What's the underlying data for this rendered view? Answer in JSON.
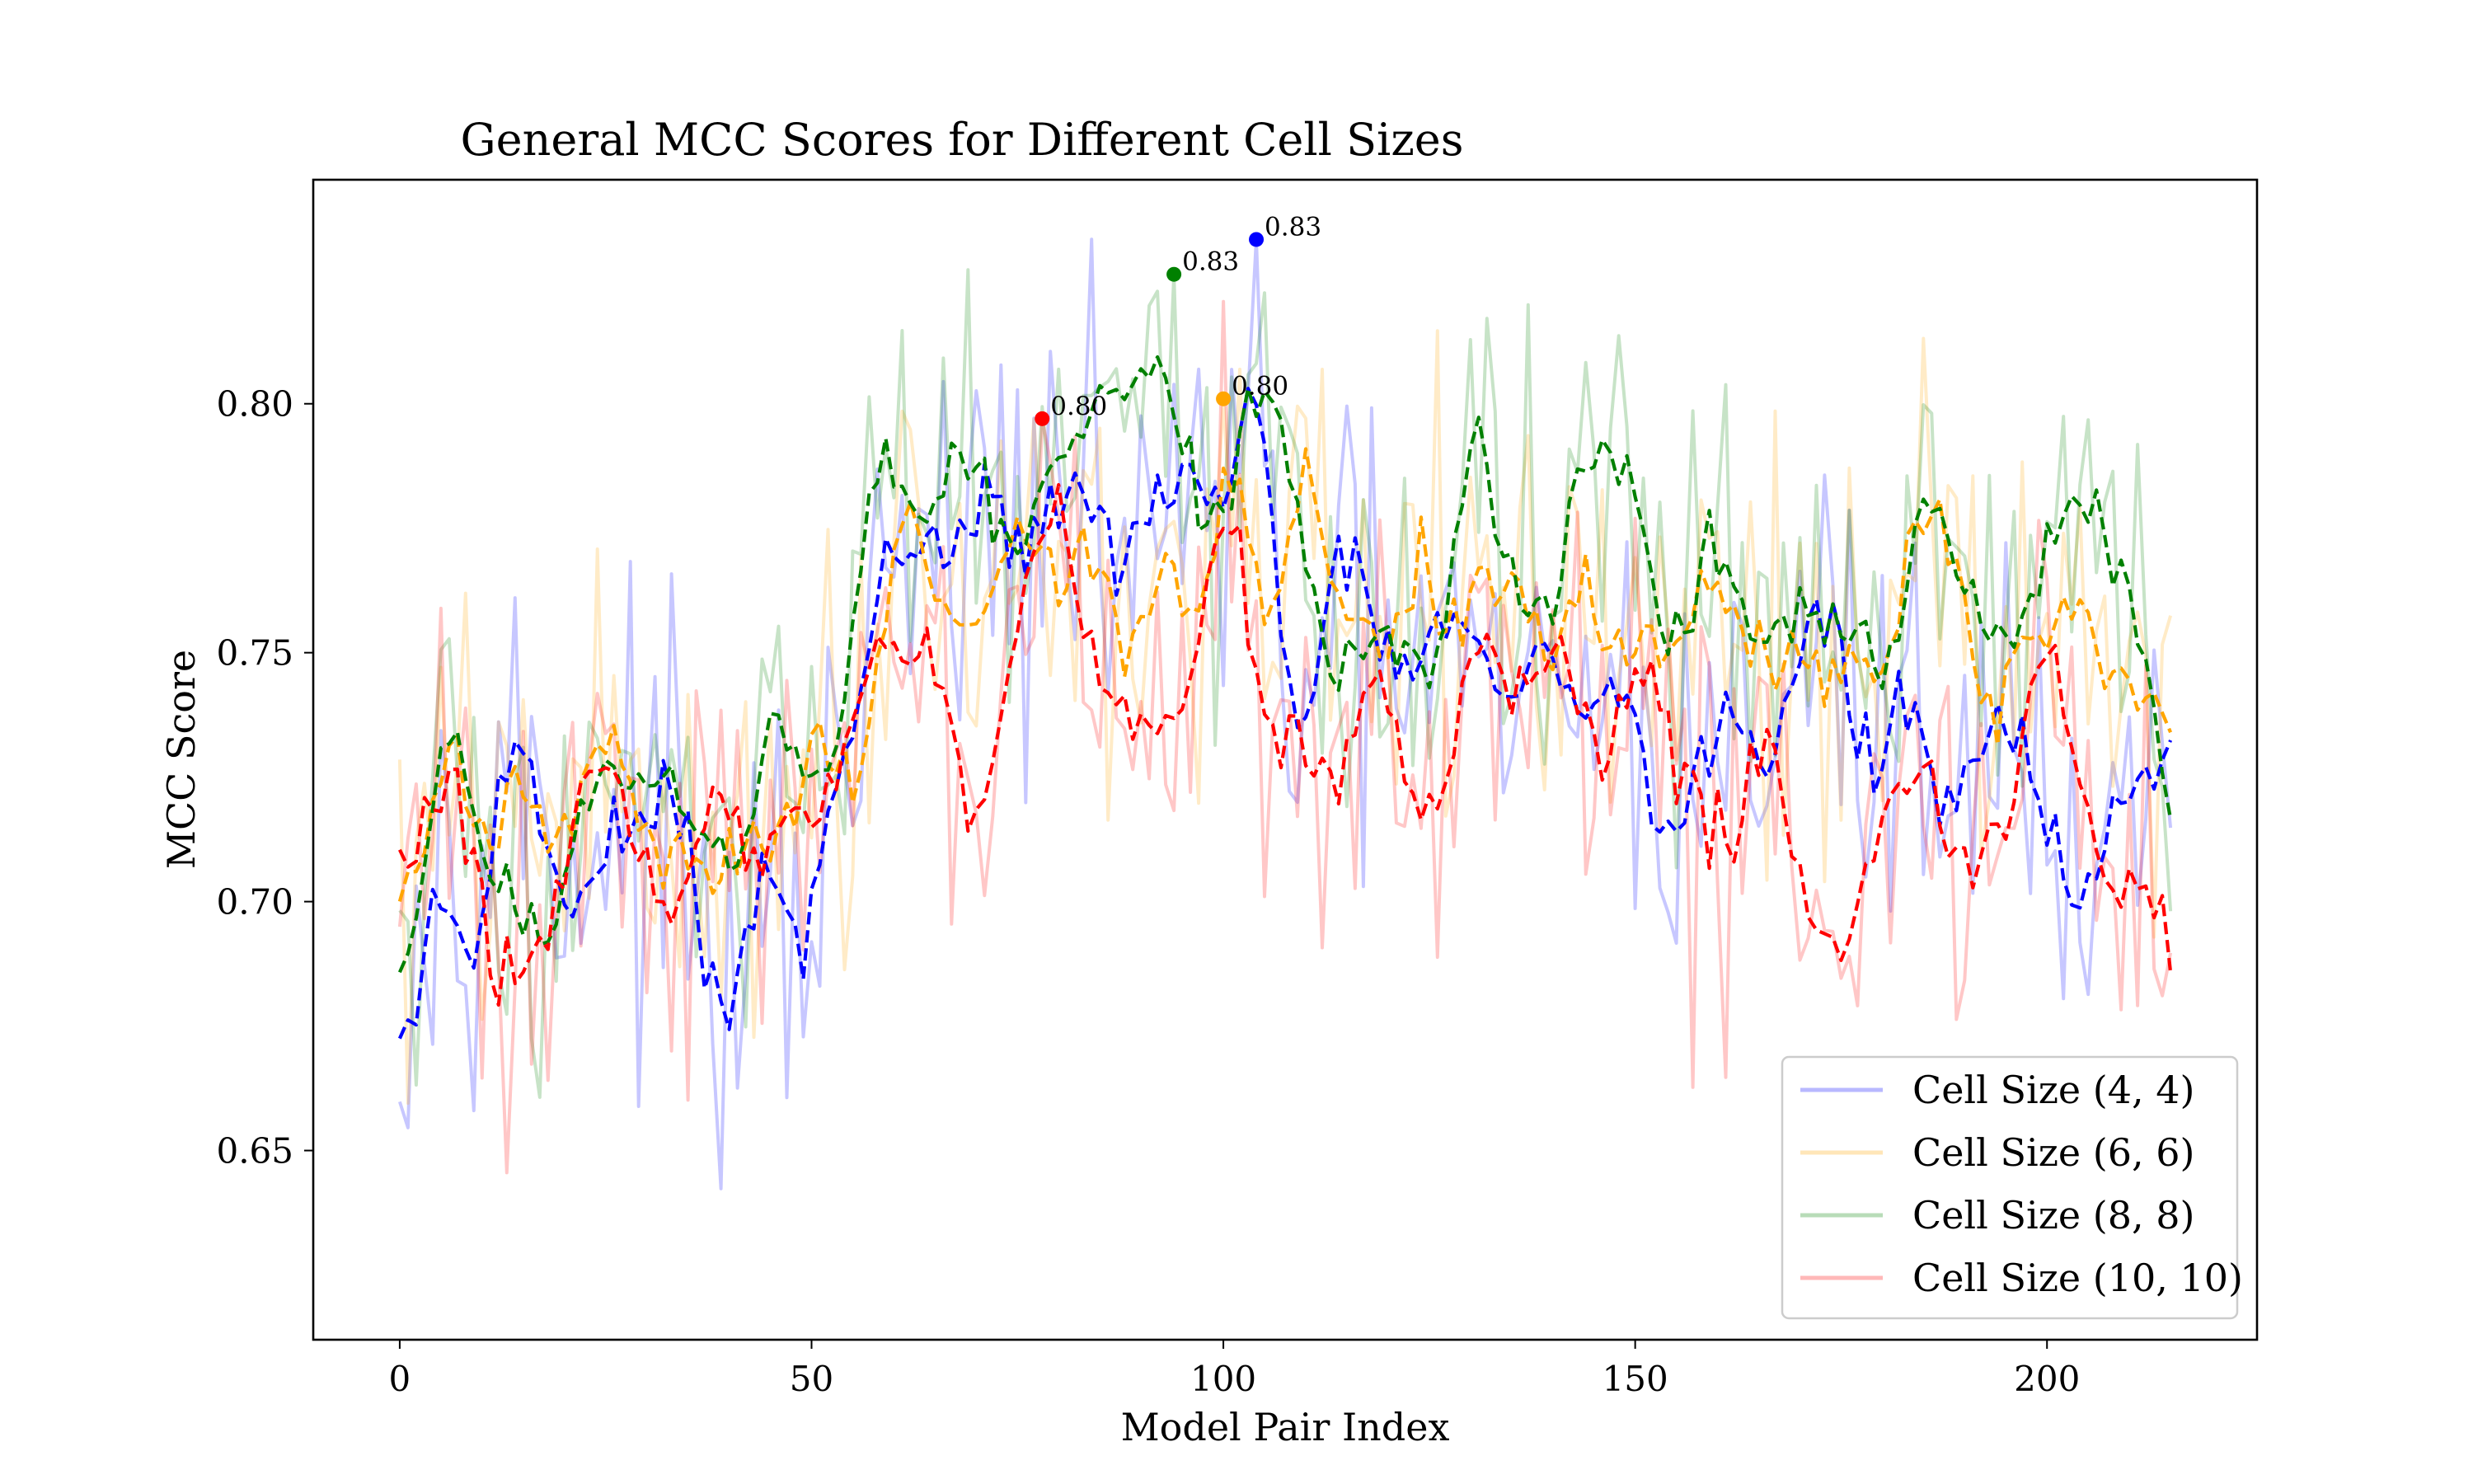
{
  "chart_data": {
    "type": "line",
    "title": "General MCC Scores for Different Cell Sizes",
    "xlabel": "Model Pair Index",
    "ylabel": "MCC Score",
    "xlim": [
      -10.5,
      225.5
    ],
    "ylim": [
      0.612,
      0.845
    ],
    "xticks": [
      0,
      50,
      100,
      150,
      200
    ],
    "yticks": [
      0.65,
      0.7,
      0.75,
      0.8
    ],
    "grid": false,
    "legend_position": "lower-right",
    "n_points": 216,
    "smoothing_window": 5,
    "series": [
      {
        "name": "Cell Size (4, 4)",
        "color": "#0000ff",
        "anchors": [
          [
            0,
            0.7
          ],
          [
            4,
            0.705
          ],
          [
            8,
            0.721
          ],
          [
            12,
            0.726
          ],
          [
            16,
            0.722
          ],
          [
            20,
            0.708
          ],
          [
            24,
            0.713
          ],
          [
            28,
            0.715
          ],
          [
            32,
            0.712
          ],
          [
            36,
            0.693
          ],
          [
            38,
            0.677
          ],
          [
            40,
            0.68
          ],
          [
            44,
            0.69
          ],
          [
            48,
            0.7
          ],
          [
            52,
            0.705
          ],
          [
            54,
            0.715
          ],
          [
            56,
            0.74
          ],
          [
            58,
            0.76
          ],
          [
            62,
            0.76
          ],
          [
            66,
            0.772
          ],
          [
            70,
            0.768
          ],
          [
            74,
            0.772
          ],
          [
            78,
            0.775
          ],
          [
            82,
            0.765
          ],
          [
            86,
            0.777
          ],
          [
            90,
            0.775
          ],
          [
            94,
            0.79
          ],
          [
            98,
            0.768
          ],
          [
            100,
            0.77
          ],
          [
            104,
            0.79
          ],
          [
            106,
            0.77
          ],
          [
            108,
            0.745
          ],
          [
            112,
            0.745
          ],
          [
            116,
            0.75
          ],
          [
            120,
            0.748
          ],
          [
            124,
            0.752
          ],
          [
            128,
            0.745
          ],
          [
            132,
            0.733
          ],
          [
            136,
            0.738
          ],
          [
            140,
            0.735
          ],
          [
            144,
            0.748
          ],
          [
            148,
            0.738
          ],
          [
            152,
            0.72
          ],
          [
            156,
            0.73
          ],
          [
            160,
            0.735
          ],
          [
            164,
            0.728
          ],
          [
            168,
            0.745
          ],
          [
            172,
            0.748
          ],
          [
            176,
            0.748
          ],
          [
            180,
            0.725
          ],
          [
            184,
            0.735
          ],
          [
            188,
            0.733
          ],
          [
            192,
            0.735
          ],
          [
            196,
            0.73
          ],
          [
            200,
            0.718
          ],
          [
            204,
            0.716
          ],
          [
            208,
            0.715
          ],
          [
            212,
            0.72
          ],
          [
            215,
            0.718
          ]
        ],
        "peak": {
          "x": 104,
          "y": 0.833,
          "label": "0.83"
        }
      },
      {
        "name": "Cell Size (6, 6)",
        "color": "#ffa500",
        "anchors": [
          [
            0,
            0.697
          ],
          [
            4,
            0.715
          ],
          [
            8,
            0.722
          ],
          [
            12,
            0.7
          ],
          [
            16,
            0.715
          ],
          [
            20,
            0.718
          ],
          [
            24,
            0.724
          ],
          [
            28,
            0.72
          ],
          [
            32,
            0.715
          ],
          [
            36,
            0.708
          ],
          [
            40,
            0.72
          ],
          [
            44,
            0.718
          ],
          [
            48,
            0.725
          ],
          [
            52,
            0.727
          ],
          [
            54,
            0.73
          ],
          [
            56,
            0.76
          ],
          [
            60,
            0.77
          ],
          [
            64,
            0.772
          ],
          [
            68,
            0.775
          ],
          [
            72,
            0.765
          ],
          [
            76,
            0.77
          ],
          [
            80,
            0.772
          ],
          [
            84,
            0.765
          ],
          [
            88,
            0.765
          ],
          [
            92,
            0.758
          ],
          [
            96,
            0.768
          ],
          [
            100,
            0.766
          ],
          [
            104,
            0.765
          ],
          [
            108,
            0.762
          ],
          [
            112,
            0.755
          ],
          [
            116,
            0.748
          ],
          [
            120,
            0.748
          ],
          [
            124,
            0.752
          ],
          [
            128,
            0.758
          ],
          [
            132,
            0.768
          ],
          [
            136,
            0.762
          ],
          [
            140,
            0.755
          ],
          [
            144,
            0.755
          ],
          [
            148,
            0.748
          ],
          [
            152,
            0.752
          ],
          [
            156,
            0.752
          ],
          [
            160,
            0.75
          ],
          [
            164,
            0.752
          ],
          [
            168,
            0.752
          ],
          [
            172,
            0.752
          ],
          [
            176,
            0.755
          ],
          [
            180,
            0.76
          ],
          [
            184,
            0.768
          ],
          [
            188,
            0.762
          ],
          [
            192,
            0.758
          ],
          [
            196,
            0.76
          ],
          [
            200,
            0.755
          ],
          [
            204,
            0.758
          ],
          [
            208,
            0.745
          ],
          [
            212,
            0.752
          ],
          [
            215,
            0.749
          ]
        ],
        "peak": {
          "x": 100,
          "y": 0.801,
          "label": "0.80"
        }
      },
      {
        "name": "Cell Size (8, 8)",
        "color": "#008000",
        "anchors": [
          [
            0,
            0.683
          ],
          [
            3,
            0.702
          ],
          [
            6,
            0.722
          ],
          [
            9,
            0.718
          ],
          [
            12,
            0.712
          ],
          [
            15,
            0.698
          ],
          [
            17,
            0.687
          ],
          [
            20,
            0.718
          ],
          [
            24,
            0.728
          ],
          [
            28,
            0.722
          ],
          [
            32,
            0.718
          ],
          [
            35,
            0.7
          ],
          [
            37,
            0.695
          ],
          [
            40,
            0.72
          ],
          [
            44,
            0.722
          ],
          [
            48,
            0.72
          ],
          [
            52,
            0.718
          ],
          [
            54,
            0.725
          ],
          [
            56,
            0.775
          ],
          [
            60,
            0.782
          ],
          [
            64,
            0.775
          ],
          [
            68,
            0.782
          ],
          [
            72,
            0.77
          ],
          [
            76,
            0.788
          ],
          [
            80,
            0.78
          ],
          [
            84,
            0.782
          ],
          [
            88,
            0.775
          ],
          [
            92,
            0.783
          ],
          [
            94,
            0.795
          ],
          [
            98,
            0.778
          ],
          [
            100,
            0.778
          ],
          [
            104,
            0.793
          ],
          [
            108,
            0.776
          ],
          [
            112,
            0.77
          ],
          [
            116,
            0.76
          ],
          [
            120,
            0.748
          ],
          [
            124,
            0.758
          ],
          [
            128,
            0.768
          ],
          [
            130,
            0.79
          ],
          [
            134,
            0.77
          ],
          [
            138,
            0.765
          ],
          [
            142,
            0.772
          ],
          [
            146,
            0.775
          ],
          [
            150,
            0.778
          ],
          [
            152,
            0.762
          ],
          [
            156,
            0.762
          ],
          [
            160,
            0.768
          ],
          [
            164,
            0.752
          ],
          [
            168,
            0.758
          ],
          [
            172,
            0.748
          ],
          [
            176,
            0.745
          ],
          [
            180,
            0.735
          ],
          [
            184,
            0.768
          ],
          [
            188,
            0.758
          ],
          [
            192,
            0.765
          ],
          [
            196,
            0.748
          ],
          [
            200,
            0.76
          ],
          [
            202,
            0.77
          ],
          [
            206,
            0.752
          ],
          [
            210,
            0.758
          ],
          [
            212,
            0.755
          ],
          [
            215,
            0.722
          ]
        ],
        "peak": {
          "x": 94,
          "y": 0.826,
          "label": "0.83"
        }
      },
      {
        "name": "Cell Size (10, 10)",
        "color": "#ff0000",
        "anchors": [
          [
            0,
            0.696
          ],
          [
            3,
            0.712
          ],
          [
            6,
            0.722
          ],
          [
            9,
            0.718
          ],
          [
            10,
            0.7
          ],
          [
            12,
            0.688
          ],
          [
            14,
            0.69
          ],
          [
            16,
            0.705
          ],
          [
            18,
            0.69
          ],
          [
            20,
            0.712
          ],
          [
            24,
            0.735
          ],
          [
            28,
            0.718
          ],
          [
            30,
            0.702
          ],
          [
            32,
            0.718
          ],
          [
            34,
            0.713
          ],
          [
            36,
            0.715
          ],
          [
            38,
            0.725
          ],
          [
            40,
            0.738
          ],
          [
            42,
            0.728
          ],
          [
            44,
            0.702
          ],
          [
            46,
            0.698
          ],
          [
            48,
            0.708
          ],
          [
            50,
            0.705
          ],
          [
            52,
            0.718
          ],
          [
            54,
            0.715
          ],
          [
            56,
            0.73
          ],
          [
            58,
            0.748
          ],
          [
            60,
            0.752
          ],
          [
            62,
            0.74
          ],
          [
            64,
            0.745
          ],
          [
            68,
            0.738
          ],
          [
            70,
            0.715
          ],
          [
            72,
            0.728
          ],
          [
            76,
            0.762
          ],
          [
            80,
            0.768
          ],
          [
            84,
            0.762
          ],
          [
            88,
            0.75
          ],
          [
            90,
            0.73
          ],
          [
            94,
            0.75
          ],
          [
            98,
            0.765
          ],
          [
            102,
            0.762
          ],
          [
            104,
            0.75
          ],
          [
            106,
            0.735
          ],
          [
            108,
            0.722
          ],
          [
            112,
            0.735
          ],
          [
            116,
            0.745
          ],
          [
            120,
            0.73
          ],
          [
            124,
            0.72
          ],
          [
            126,
            0.705
          ],
          [
            130,
            0.742
          ],
          [
            134,
            0.738
          ],
          [
            138,
            0.742
          ],
          [
            142,
            0.738
          ],
          [
            144,
            0.722
          ],
          [
            148,
            0.742
          ],
          [
            152,
            0.752
          ],
          [
            156,
            0.718
          ],
          [
            160,
            0.705
          ],
          [
            164,
            0.715
          ],
          [
            168,
            0.725
          ],
          [
            170,
            0.712
          ],
          [
            172,
            0.695
          ],
          [
            176,
            0.698
          ],
          [
            180,
            0.705
          ],
          [
            184,
            0.738
          ],
          [
            188,
            0.735
          ],
          [
            190,
            0.7
          ],
          [
            194,
            0.705
          ],
          [
            198,
            0.722
          ],
          [
            200,
            0.735
          ],
          [
            202,
            0.738
          ],
          [
            206,
            0.715
          ],
          [
            210,
            0.705
          ],
          [
            215,
            0.702
          ]
        ],
        "peak": {
          "x": 78,
          "y": 0.797,
          "label": "0.80"
        }
      }
    ]
  }
}
